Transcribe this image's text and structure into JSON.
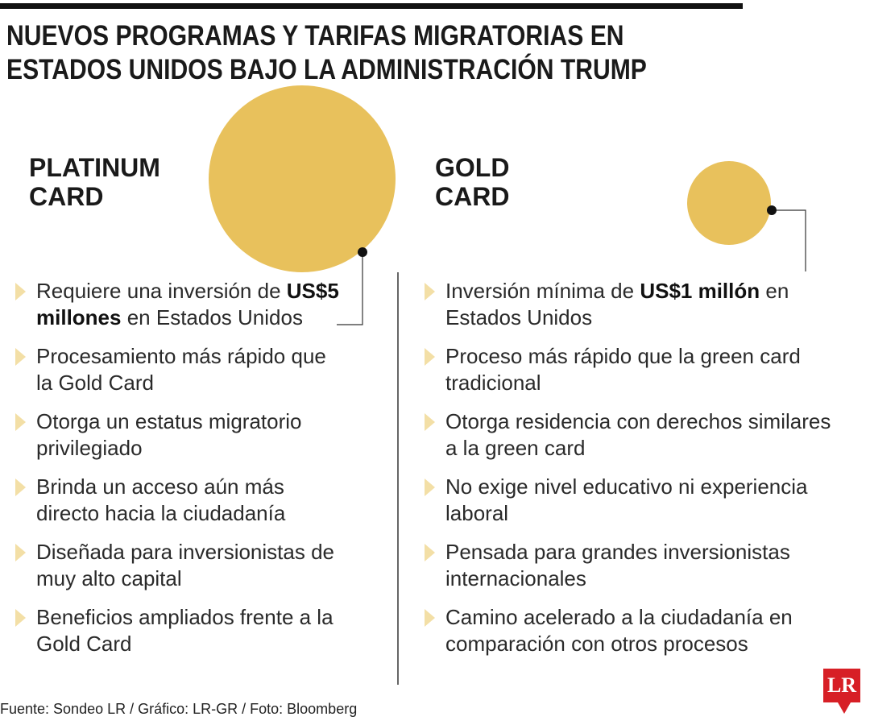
{
  "header": {
    "title": "NUEVOS PROGRAMAS Y TARIFAS MIGRATORIAS EN ESTADOS UNIDOS BAJO LA ADMINISTRACIÓN TRUMP"
  },
  "columns": [
    {
      "heading": "PLATINUM CARD",
      "items": [
        [
          {
            "text": "Requiere una inversión de "
          },
          {
            "strong": "US$5 millones"
          },
          {
            "text": " en Estados Unidos"
          }
        ],
        [
          {
            "text": "Procesamiento más rápido que la Gold Card"
          }
        ],
        [
          {
            "text": "Otorga un estatus migratorio privilegiado"
          }
        ],
        [
          {
            "text": "Brinda un acceso aún más directo hacia la ciudadanía"
          }
        ],
        [
          {
            "text": "Diseñada para inversionistas de muy alto capital"
          }
        ],
        [
          {
            "text": "Beneficios ampliados frente a la Gold Card"
          }
        ]
      ]
    },
    {
      "heading": "GOLD CARD",
      "items": [
        [
          {
            "text": "Inversión mínima de "
          },
          {
            "strong": "US$1 millón"
          },
          {
            "text": " en Estados Unidos"
          }
        ],
        [
          {
            "text": "Proceso más rápido que la green card tradicional"
          }
        ],
        [
          {
            "text": "Otorga residencia con derechos similares a la green card"
          }
        ],
        [
          {
            "text": "No exige nivel educativo ni experiencia laboral"
          }
        ],
        [
          {
            "text": "Pensada para grandes inversionistas internacionales"
          }
        ],
        [
          {
            "text": "Camino acelerado a la ciudadanía en comparación con otros procesos"
          }
        ]
      ]
    }
  ],
  "footer": {
    "source": "Fuente: Sondeo LR / Gráfico: LR-GR / Foto: Bloomberg",
    "logo": "LR"
  }
}
